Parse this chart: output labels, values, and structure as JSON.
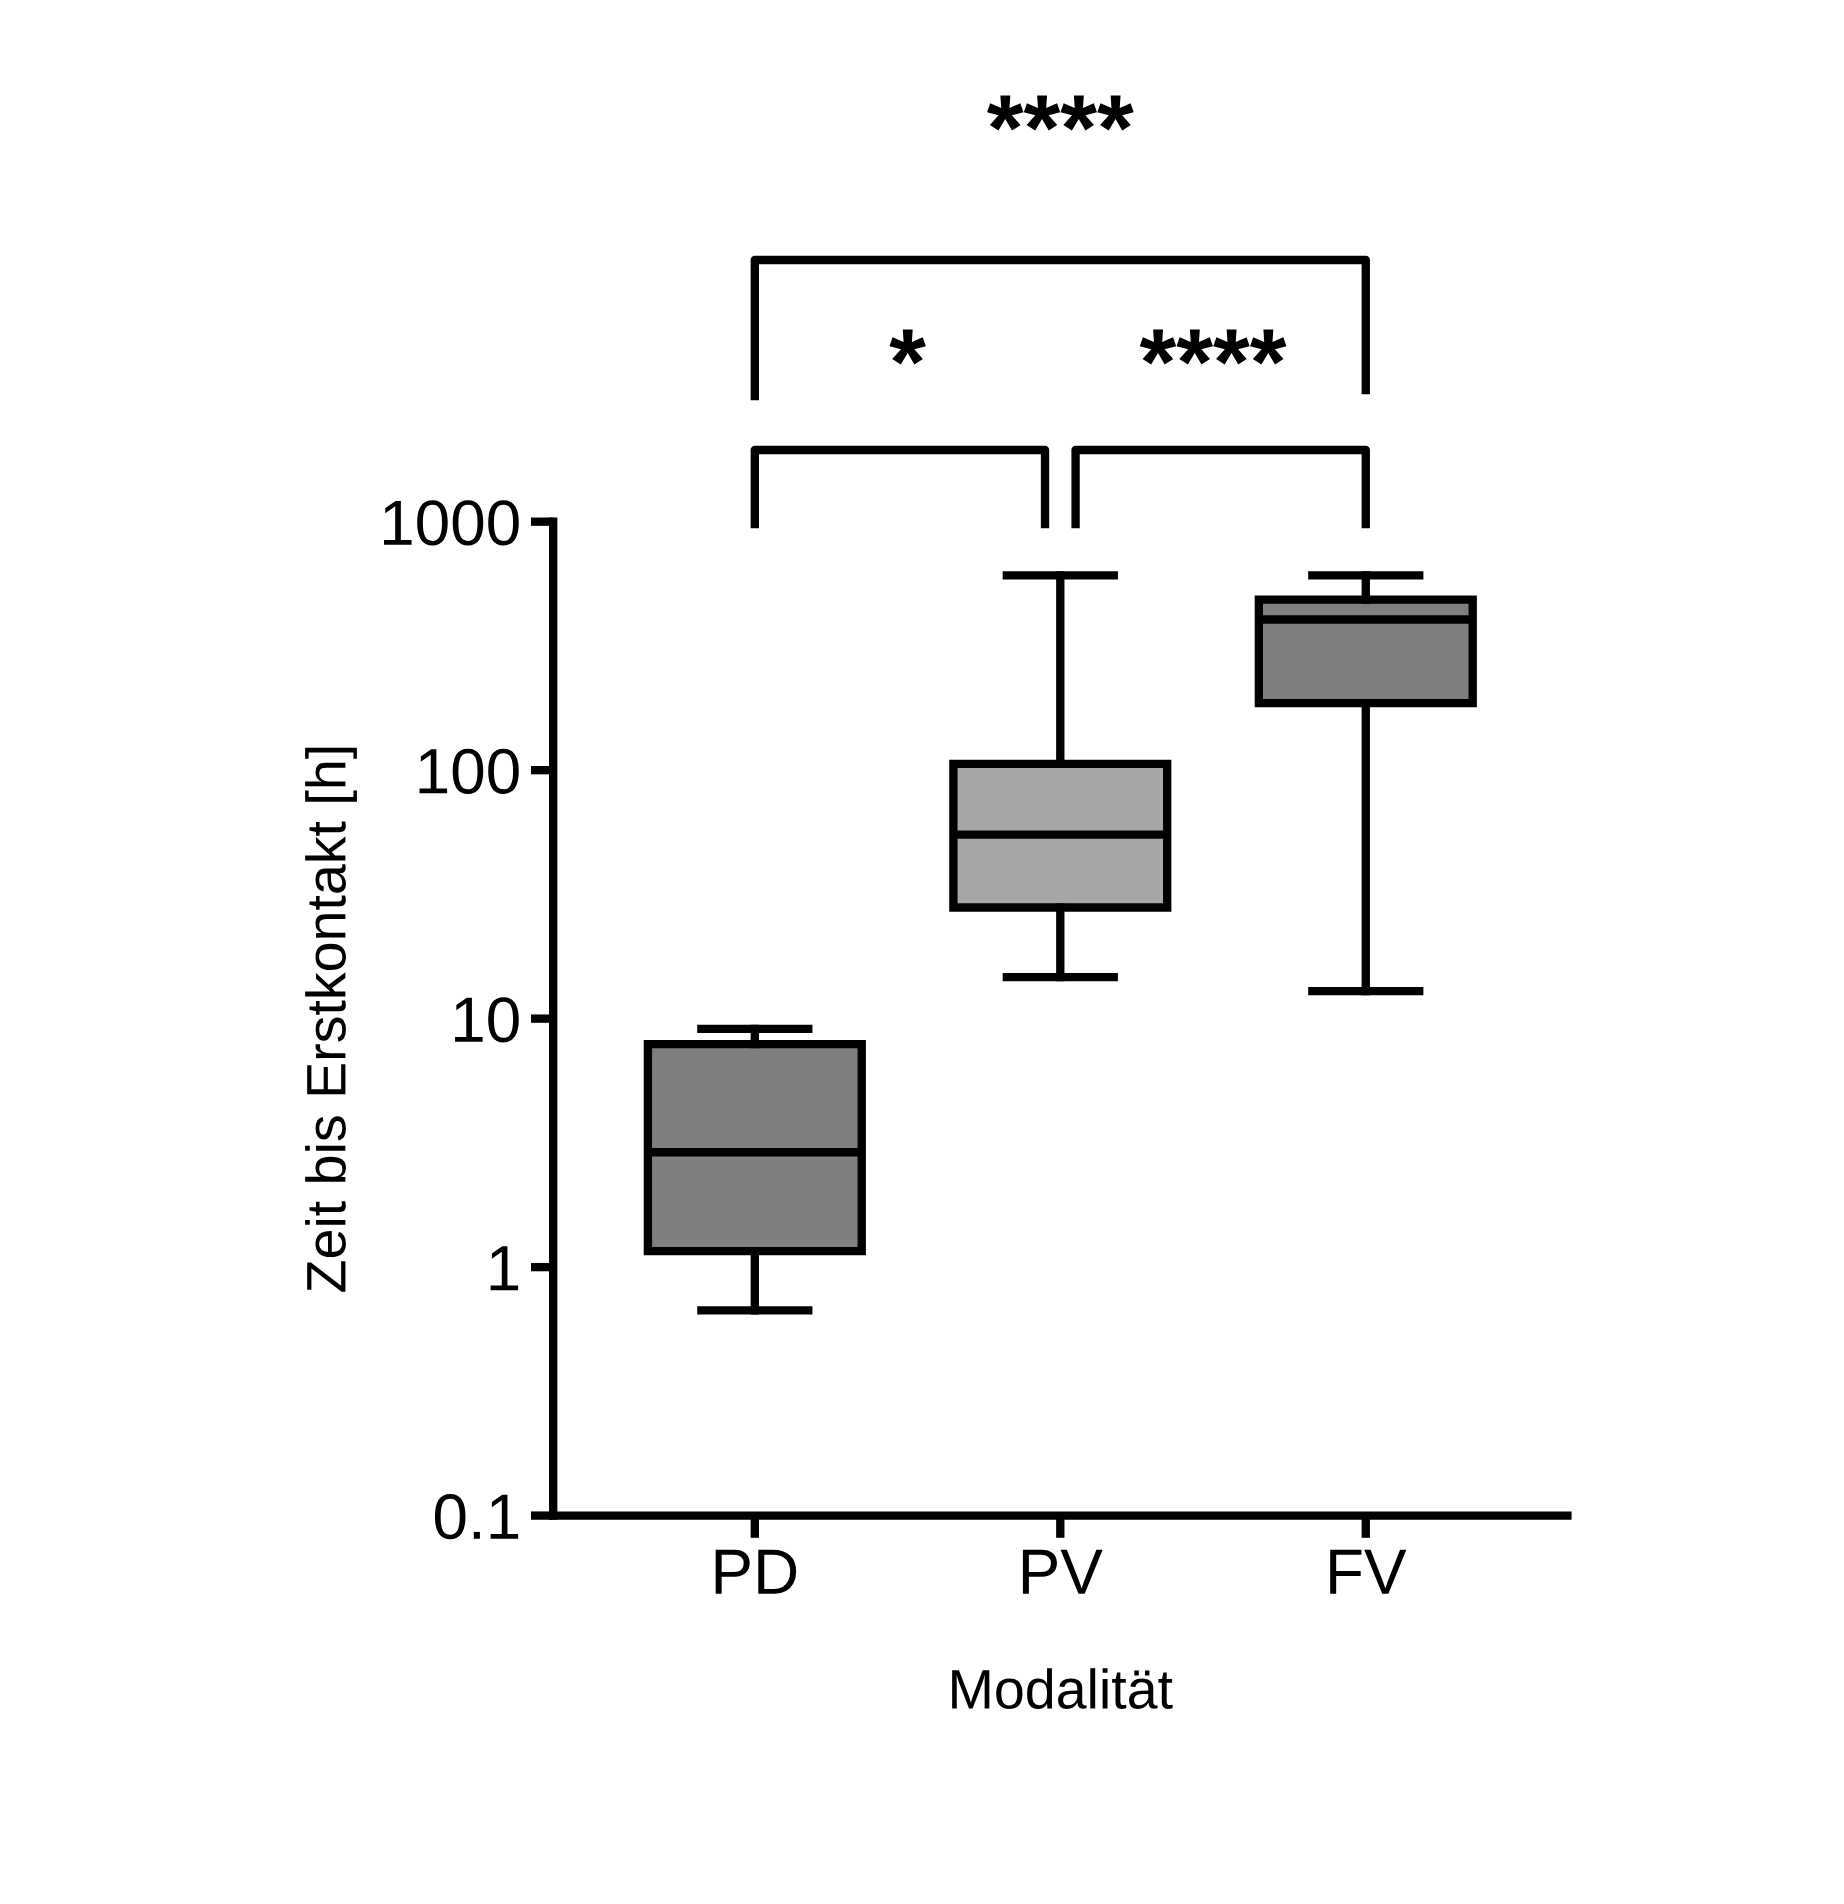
{
  "chart_data": {
    "type": "box",
    "xlabel": "Modalität",
    "ylabel": "Zeit bis Erstkontakt [h]",
    "categories": [
      "PD",
      "PV",
      "FV"
    ],
    "colors": [
      "#7f7f7f",
      "#a6a6a6",
      "#7f7f7f"
    ],
    "boxes": [
      {
        "low": 0.67,
        "q1": 1.16,
        "median": 2.9,
        "q3": 7.9,
        "high": 9.1
      },
      {
        "low": 14.7,
        "q1": 28,
        "median": 55,
        "q3": 106,
        "high": 608
      },
      {
        "low": 12.9,
        "q1": 186,
        "median": 404,
        "q3": 486,
        "high": 608
      }
    ],
    "log": "y",
    "ylim": [
      0.1,
      1000
    ],
    "yticks": [
      {
        "value": 0.1,
        "label": "0.1"
      },
      1,
      10,
      100,
      1000
    ],
    "grid": false,
    "annotations": [
      "****",
      "*",
      "****"
    ]
  }
}
